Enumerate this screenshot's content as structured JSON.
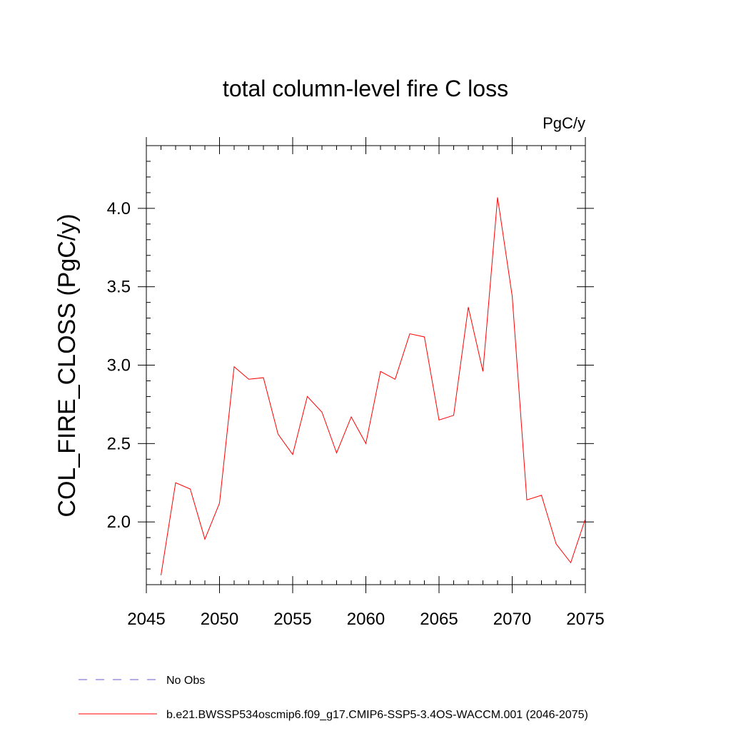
{
  "chart_data": {
    "type": "line",
    "title": "total column-level fire C loss",
    "units": "PgC/y",
    "xlabel": "",
    "ylabel": "COL_FIRE_CLOSS  (PgC/y)",
    "xlim": [
      2045,
      2075
    ],
    "ylim": [
      1.6,
      4.4
    ],
    "xticks": [
      2045,
      2050,
      2055,
      2060,
      2065,
      2070,
      2075
    ],
    "xtick_labels": [
      "2045",
      "2050",
      "2055",
      "2060",
      "2065",
      "2070",
      "2075"
    ],
    "yticks": [
      2.0,
      2.5,
      3.0,
      3.5,
      4.0
    ],
    "ytick_labels": [
      "2.0",
      "2.5",
      "3.0",
      "3.5",
      "4.0"
    ],
    "grid": false,
    "legend_position": "bottom",
    "series": [
      {
        "name": "b.e21.BWSSP534oscmip6.f09_g17.CMIP6-SSP5-3.4OS-WACCM.001 (2046-2075)",
        "color": "#ff0000",
        "style": "solid",
        "x": [
          2046,
          2047,
          2048,
          2049,
          2050,
          2051,
          2052,
          2053,
          2054,
          2055,
          2056,
          2057,
          2058,
          2059,
          2060,
          2061,
          2062,
          2063,
          2064,
          2065,
          2066,
          2067,
          2068,
          2069,
          2070,
          2071,
          2072,
          2073,
          2074,
          2075
        ],
        "y": [
          1.66,
          2.25,
          2.21,
          1.89,
          2.12,
          2.99,
          2.91,
          2.92,
          2.56,
          2.43,
          2.8,
          2.7,
          2.44,
          2.67,
          2.5,
          2.96,
          2.91,
          3.2,
          3.18,
          2.65,
          2.68,
          3.37,
          2.96,
          4.07,
          3.44,
          2.14,
          2.17,
          1.86,
          1.74,
          2.02
        ]
      }
    ],
    "legend": [
      {
        "label": "No Obs",
        "color": "#6a5acd",
        "style": "dashed"
      },
      {
        "label": "b.e21.BWSSP534oscmip6.f09_g17.CMIP6-SSP5-3.4OS-WACCM.001 (2046-2075)",
        "color": "#ff0000",
        "style": "solid"
      }
    ]
  }
}
